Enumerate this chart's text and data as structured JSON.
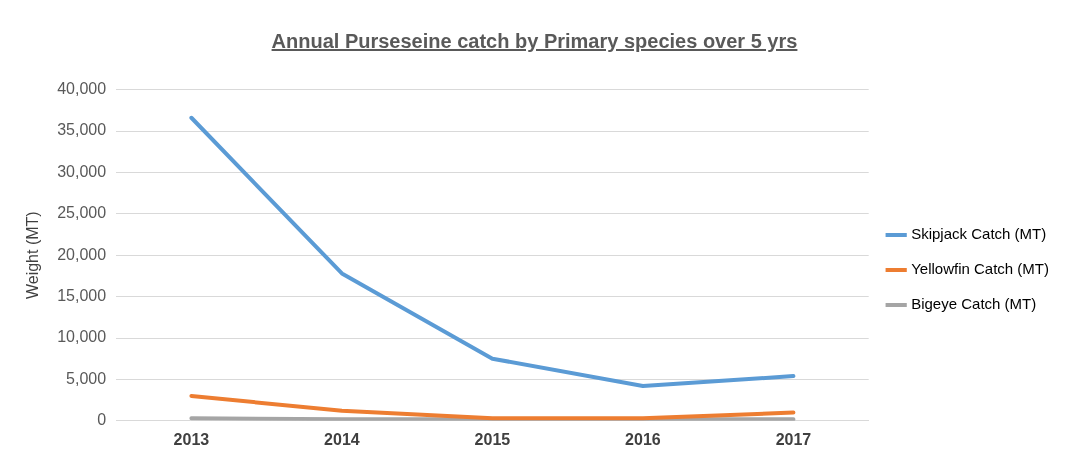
{
  "chart_data": {
    "type": "line",
    "title": "Annual  Purseseine catch by Primary species over 5 yrs",
    "ylabel": "Weight (MT)",
    "categories": [
      "2013",
      "2014",
      "2015",
      "2016",
      "2017"
    ],
    "series": [
      {
        "name": "Skipjack Catch (MT)",
        "color": "#5b9bd5",
        "values": [
          36600,
          17800,
          7500,
          4200,
          5400
        ]
      },
      {
        "name": "Yellowfin Catch (MT)",
        "color": "#ed7d31",
        "values": [
          3000,
          1200,
          300,
          300,
          1000
        ]
      },
      {
        "name": "Bigeye Catch (MT)",
        "color": "#a5a5a5",
        "values": [
          300,
          200,
          200,
          200,
          200
        ]
      }
    ],
    "ylim": [
      0,
      40000
    ],
    "yticks": [
      0,
      {
        "value": 5000,
        "label": "5,000"
      },
      {
        "value": 10000,
        "label": "10,000"
      },
      {
        "value": 15000,
        "label": "15,000"
      },
      {
        "value": 20000,
        "label": "20,000"
      },
      {
        "value": 25000,
        "label": "25,000"
      },
      {
        "value": 30000,
        "label": "30,000"
      },
      {
        "value": 35000,
        "label": "35,000"
      },
      {
        "value": 40000,
        "label": "40,000"
      }
    ],
    "grid": "y",
    "legend": "right",
    "marker": "none",
    "line_style": "solid"
  }
}
